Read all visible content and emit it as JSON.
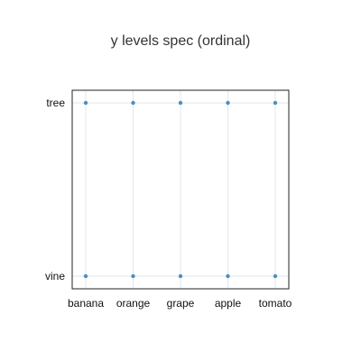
{
  "chart_data": {
    "type": "scatter",
    "title": "y levels spec (ordinal)",
    "xlabel": "",
    "ylabel": "",
    "x_categories": [
      "banana",
      "orange",
      "grape",
      "apple",
      "tomato"
    ],
    "y_categories": [
      "vine",
      "tree"
    ],
    "series": [
      {
        "points": [
          {
            "x": "banana",
            "y": "tree"
          },
          {
            "x": "orange",
            "y": "tree"
          },
          {
            "x": "grape",
            "y": "tree"
          },
          {
            "x": "apple",
            "y": "tree"
          },
          {
            "x": "tomato",
            "y": "tree"
          },
          {
            "x": "banana",
            "y": "vine"
          },
          {
            "x": "orange",
            "y": "vine"
          },
          {
            "x": "grape",
            "y": "vine"
          },
          {
            "x": "apple",
            "y": "vine"
          },
          {
            "x": "tomato",
            "y": "vine"
          }
        ],
        "color": "#4c8fbf"
      }
    ],
    "grid": true,
    "legend": "none"
  }
}
